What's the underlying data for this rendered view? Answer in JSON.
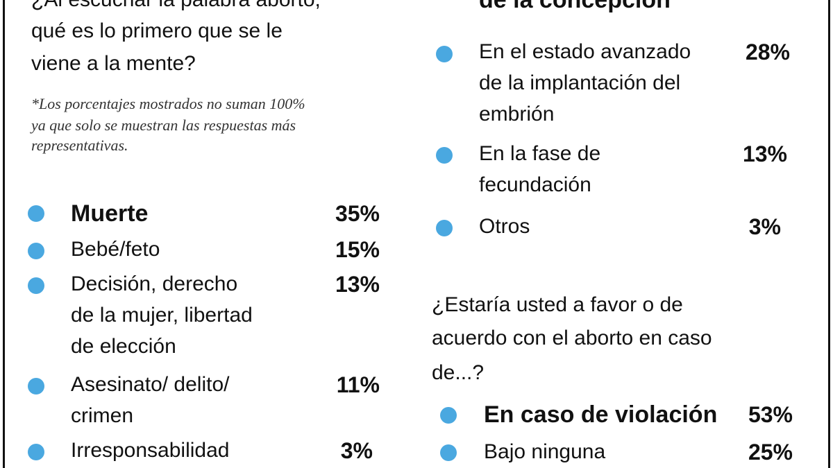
{
  "left": {
    "question": [
      "¿Al escuchar la palabra aborto,",
      "qué es lo primero que se le",
      "viene a la mente?"
    ],
    "note": [
      "*Los porcentajes mostrados no suman 100%",
      "ya que solo se muestran las respuestas más",
      "representativas."
    ],
    "items": [
      {
        "label": [
          "Muerte"
        ],
        "value": "35%"
      },
      {
        "label": [
          "Bebé/feto"
        ],
        "value": "15%"
      },
      {
        "label": [
          "Decisión, derecho",
          "de la mujer, libertad",
          "de elección"
        ],
        "value": "13%"
      },
      {
        "label": [
          "Asesinato/ delito/",
          "crimen"
        ],
        "value": "11%"
      },
      {
        "label": [
          "Irresponsabilidad"
        ],
        "value": "3%"
      }
    ]
  },
  "right": {
    "heading": "de la concepción",
    "items": [
      {
        "label": [
          "En el estado avanzado",
          "de la implantación del",
          "embrión"
        ],
        "value": "28%"
      },
      {
        "label": [
          "En la fase de",
          "fecundación"
        ],
        "value": "13%"
      },
      {
        "label": [
          "Otros"
        ],
        "value": "3%"
      }
    ],
    "question": [
      "¿Estaría usted a favor o de",
      "acuerdo con el aborto en caso",
      "de...?"
    ],
    "items2": [
      {
        "label": [
          "En caso de violación"
        ],
        "value": "53%"
      },
      {
        "label": [
          "Bajo ninguna"
        ],
        "value": "25%"
      }
    ]
  }
}
